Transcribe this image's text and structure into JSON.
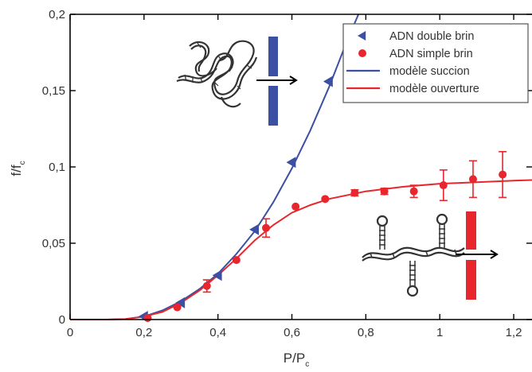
{
  "chart_data": {
    "type": "scatter",
    "xlabel": "P/P",
    "xlabel_sub": "c",
    "ylabel": "f/f",
    "ylabel_sub": "c",
    "xlim": [
      0,
      1.25
    ],
    "ylim": [
      0,
      0.2
    ],
    "xticks": [
      {
        "v": 0,
        "label": "0"
      },
      {
        "v": 0.2,
        "label": "0,2"
      },
      {
        "v": 0.4,
        "label": "0,4"
      },
      {
        "v": 0.6,
        "label": "0,6"
      },
      {
        "v": 0.8,
        "label": "0,8"
      },
      {
        "v": 1.0,
        "label": "1"
      },
      {
        "v": 1.2,
        "label": "1,2"
      }
    ],
    "yticks": [
      {
        "v": 0,
        "label": "0"
      },
      {
        "v": 0.05,
        "label": "0,05"
      },
      {
        "v": 0.1,
        "label": "0,1"
      },
      {
        "v": 0.15,
        "label": "0,15"
      },
      {
        "v": 0.2,
        "label": "0,2"
      }
    ],
    "legend_position": "top-right",
    "series": [
      {
        "name": "ADN double brin",
        "kind": "points",
        "marker": "triangle-left",
        "color": "#3b4fa3",
        "x": [
          0.2,
          0.3,
          0.4,
          0.5,
          0.6,
          0.7
        ],
        "y": [
          0.002,
          0.011,
          0.029,
          0.059,
          0.103,
          0.156
        ]
      },
      {
        "name": "ADN simple brin",
        "kind": "points",
        "marker": "circle",
        "color": "#e8262e",
        "x": [
          0.21,
          0.29,
          0.37,
          0.45,
          0.53,
          0.61,
          0.69,
          0.77,
          0.85,
          0.93,
          1.01,
          1.09,
          1.17
        ],
        "y": [
          0.001,
          0.008,
          0.022,
          0.039,
          0.06,
          0.074,
          0.079,
          0.083,
          0.084,
          0.084,
          0.088,
          0.092,
          0.095
        ],
        "err": [
          0,
          0,
          0.004,
          0,
          0.006,
          0,
          0,
          0.002,
          0.002,
          0.004,
          0.01,
          0.012,
          0.015
        ]
      },
      {
        "name": "modèle succion",
        "kind": "line",
        "color": "#3b4fa3",
        "x": [
          0,
          0.1,
          0.15,
          0.2,
          0.25,
          0.3,
          0.35,
          0.4,
          0.45,
          0.5,
          0.55,
          0.6,
          0.65,
          0.7,
          0.75,
          0.78
        ],
        "y": [
          0,
          0,
          0.0003,
          0.002,
          0.006,
          0.012,
          0.02,
          0.03,
          0.043,
          0.058,
          0.077,
          0.099,
          0.124,
          0.152,
          0.183,
          0.2
        ]
      },
      {
        "name": "modèle ouverture",
        "kind": "line",
        "color": "#e8262e",
        "x": [
          0,
          0.1,
          0.15,
          0.2,
          0.25,
          0.3,
          0.35,
          0.4,
          0.45,
          0.5,
          0.55,
          0.6,
          0.65,
          0.7,
          0.8,
          0.9,
          1.0,
          1.1,
          1.2,
          1.26
        ],
        "y": [
          0,
          0,
          0.0003,
          0.002,
          0.005,
          0.011,
          0.019,
          0.029,
          0.04,
          0.052,
          0.062,
          0.07,
          0.075,
          0.079,
          0.084,
          0.087,
          0.089,
          0.09,
          0.091,
          0.0915
        ]
      }
    ],
    "insets": [
      {
        "name": "double-strand-dna",
        "color": "#3b4fa3",
        "arrow": "right"
      },
      {
        "name": "single-strand-dna-hairpins",
        "color": "#e8262e",
        "arrow": "right"
      }
    ]
  }
}
